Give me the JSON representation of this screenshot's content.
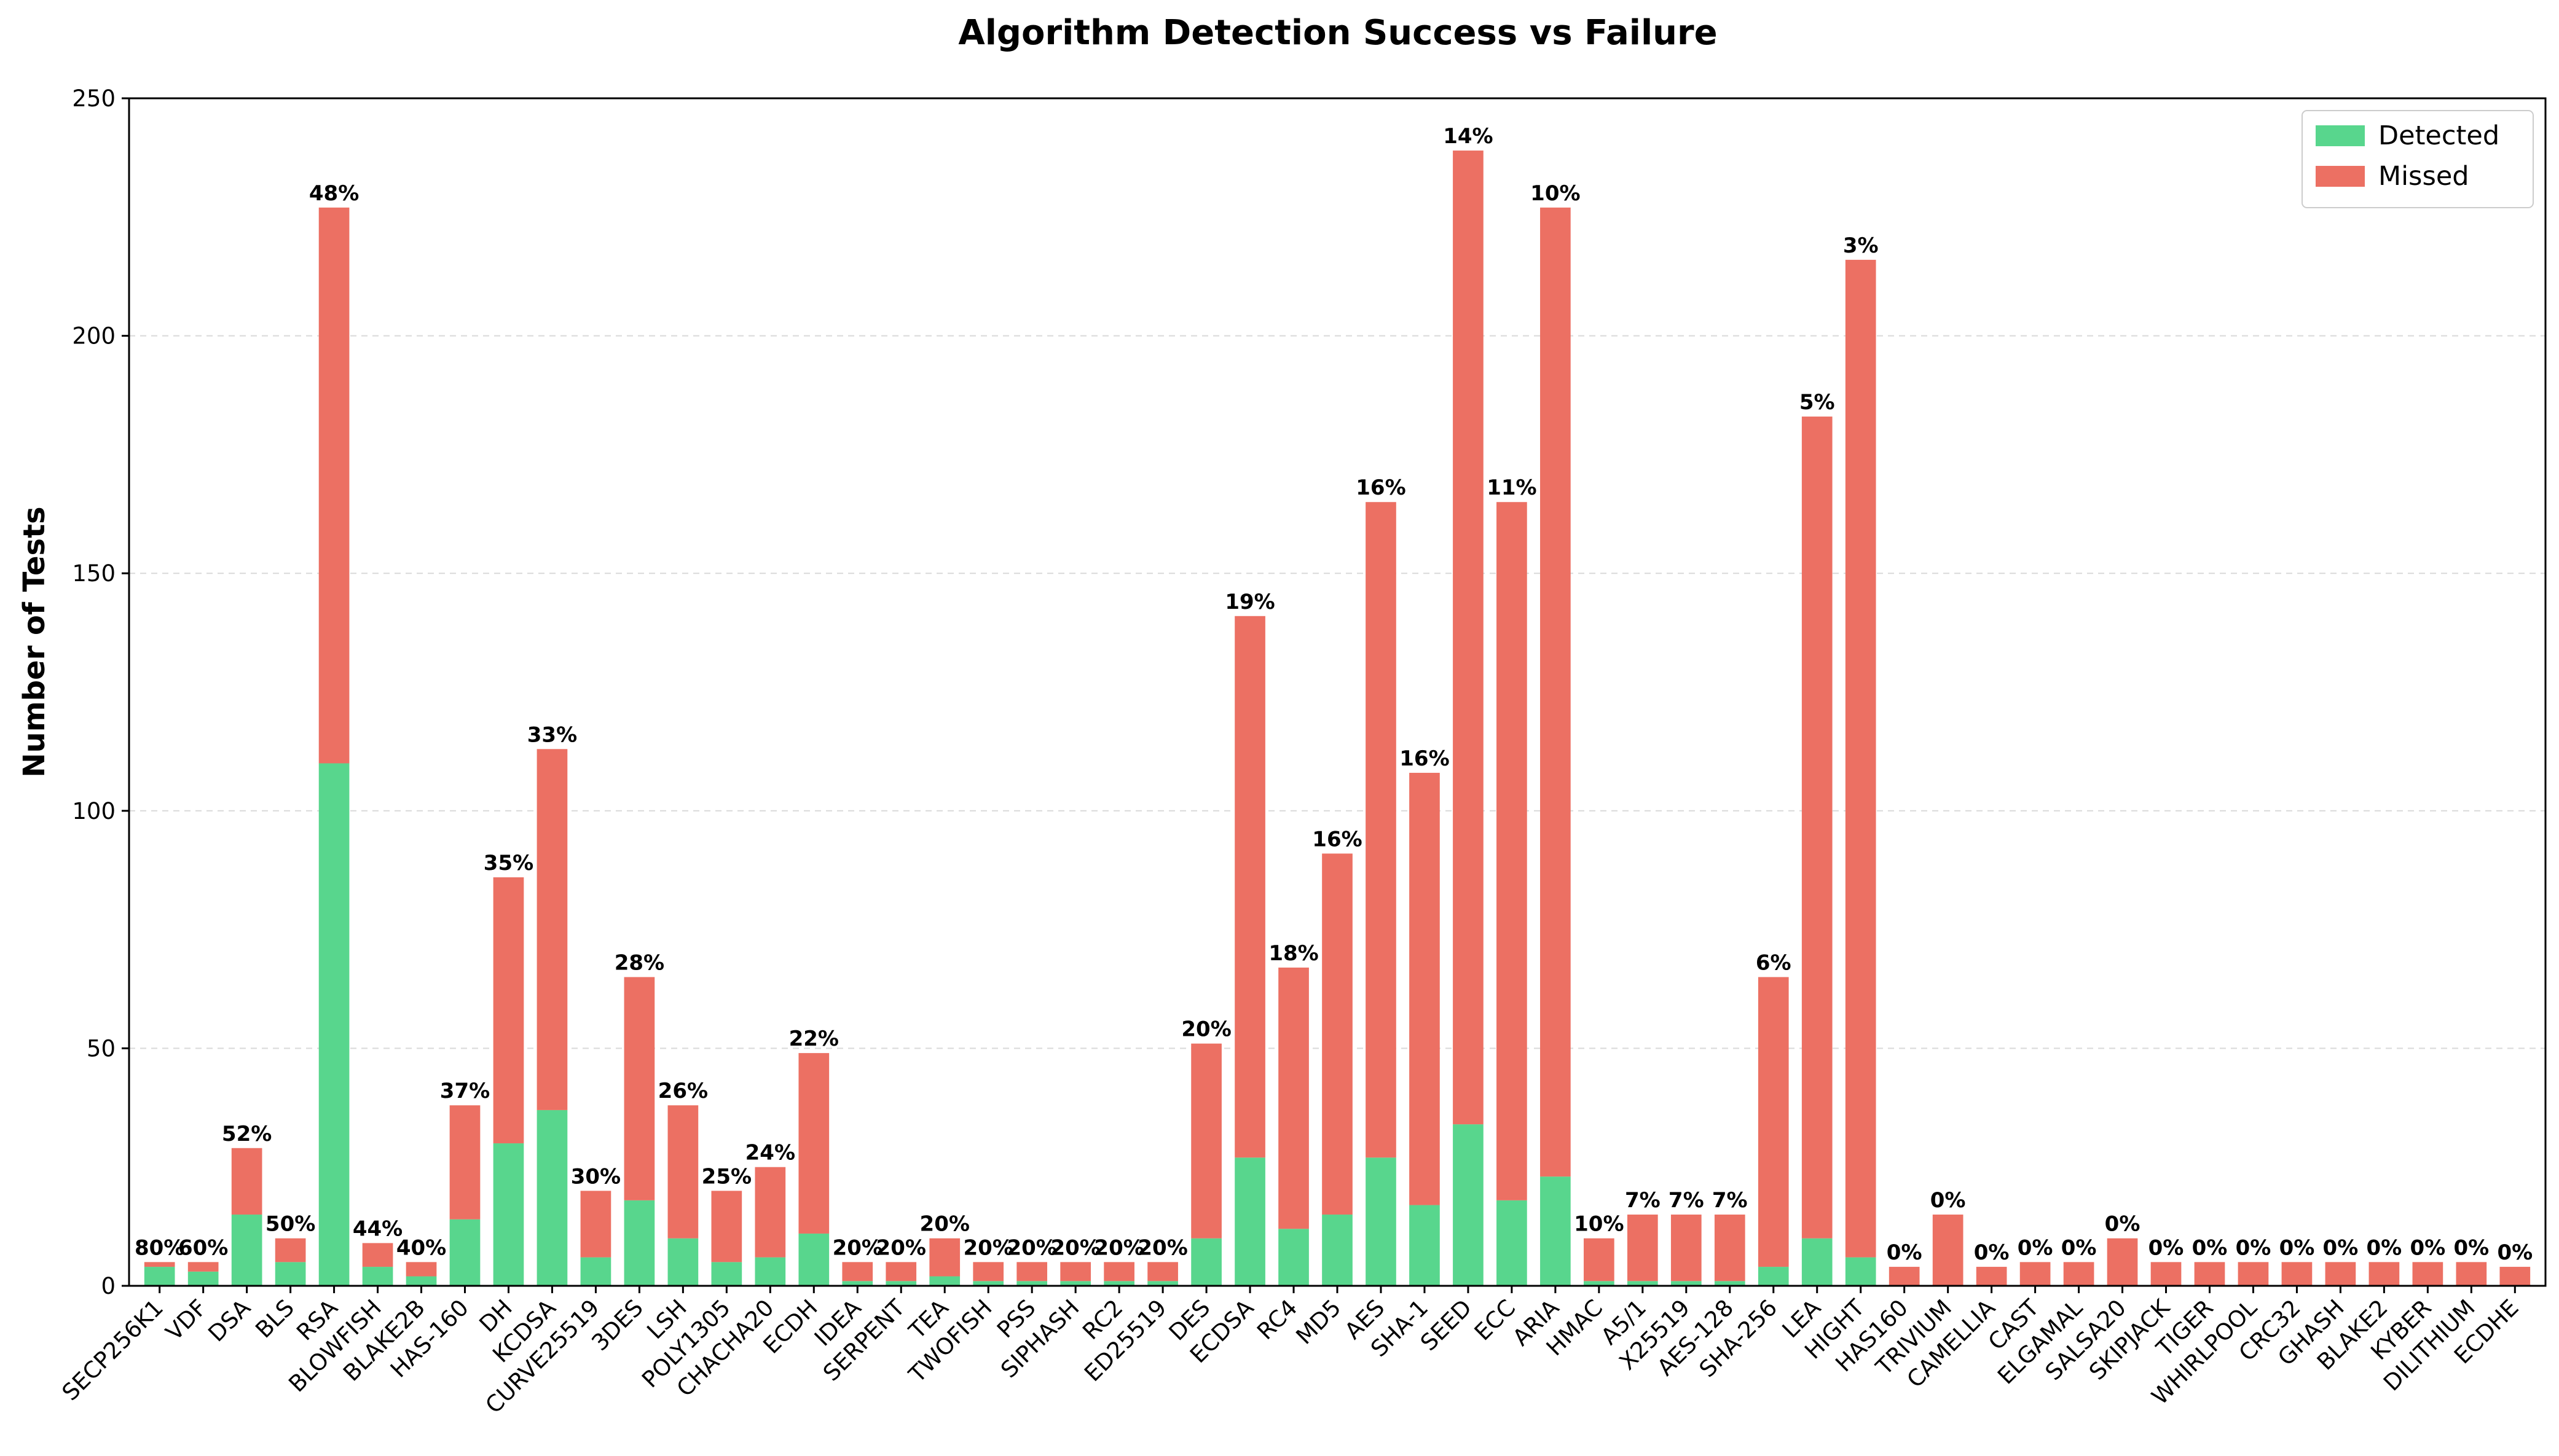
{
  "chart_data": {
    "type": "bar",
    "stacked": true,
    "title": "Algorithm Detection Success vs Failure",
    "xlabel": "",
    "ylabel": "Number of Tests",
    "ylim": [
      0,
      250
    ],
    "yticks": [
      0,
      50,
      100,
      150,
      200,
      250
    ],
    "grid": "y-dashed",
    "legend_position": "top-right",
    "categories": [
      "SECP256K1",
      "VDF",
      "DSA",
      "BLS",
      "RSA",
      "BLOWFISH",
      "BLAKE2B",
      "HAS-160",
      "DH",
      "KCDSA",
      "CURVE25519",
      "3DES",
      "LSH",
      "POLY1305",
      "CHACHA20",
      "ECDH",
      "IDEA",
      "SERPENT",
      "TEA",
      "TWOFISH",
      "PSS",
      "SIPHASH",
      "RC2",
      "ED25519",
      "DES",
      "ECDSA",
      "RC4",
      "MD5",
      "AES",
      "SHA-1",
      "SEED",
      "ECC",
      "ARIA",
      "HMAC",
      "A5/1",
      "X25519",
      "AES-128",
      "SHA-256",
      "LEA",
      "HIGHT",
      "HAS160",
      "TRIVIUM",
      "CAMELLIA",
      "CAST",
      "ELGAMAL",
      "SALSA20",
      "SKIPJACK",
      "TIGER",
      "WHIRLPOOL",
      "CRC32",
      "GHASH",
      "BLAKE2",
      "KYBER",
      "DILITHIUM",
      "ECDHE"
    ],
    "series": [
      {
        "name": "Detected",
        "color": "#58d68d",
        "values": [
          4,
          3,
          15,
          5,
          110,
          4,
          2,
          14,
          30,
          37,
          6,
          18,
          10,
          5,
          6,
          11,
          1,
          1,
          2,
          1,
          1,
          1,
          1,
          1,
          10,
          27,
          12,
          15,
          27,
          17,
          34,
          18,
          23,
          1,
          1,
          1,
          1,
          4,
          10,
          6,
          0,
          0,
          0,
          0,
          0,
          0,
          0,
          0,
          0,
          0,
          0,
          0,
          0,
          0,
          0
        ]
      },
      {
        "name": "Missed",
        "color": "#ec7063",
        "values": [
          1,
          2,
          14,
          5,
          117,
          5,
          3,
          24,
          56,
          76,
          14,
          47,
          28,
          15,
          19,
          38,
          4,
          4,
          8,
          4,
          4,
          4,
          4,
          4,
          41,
          114,
          55,
          76,
          138,
          91,
          205,
          147,
          204,
          9,
          14,
          14,
          14,
          61,
          173,
          210,
          4,
          15,
          4,
          5,
          5,
          10,
          5,
          5,
          5,
          5,
          5,
          5,
          5,
          5,
          4
        ]
      }
    ],
    "percent_labels": [
      "80%",
      "60%",
      "52%",
      "50%",
      "48%",
      "44%",
      "40%",
      "37%",
      "35%",
      "33%",
      "30%",
      "28%",
      "26%",
      "25%",
      "24%",
      "22%",
      "20%",
      "20%",
      "20%",
      "20%",
      "20%",
      "20%",
      "20%",
      "20%",
      "20%",
      "19%",
      "18%",
      "16%",
      "16%",
      "16%",
      "14%",
      "11%",
      "10%",
      "10%",
      "7%",
      "7%",
      "7%",
      "6%",
      "5%",
      "3%",
      "0%",
      "0%",
      "0%",
      "0%",
      "0%",
      "0%",
      "0%",
      "0%",
      "0%",
      "0%",
      "0%",
      "0%",
      "0%",
      "0%",
      "0%"
    ]
  }
}
